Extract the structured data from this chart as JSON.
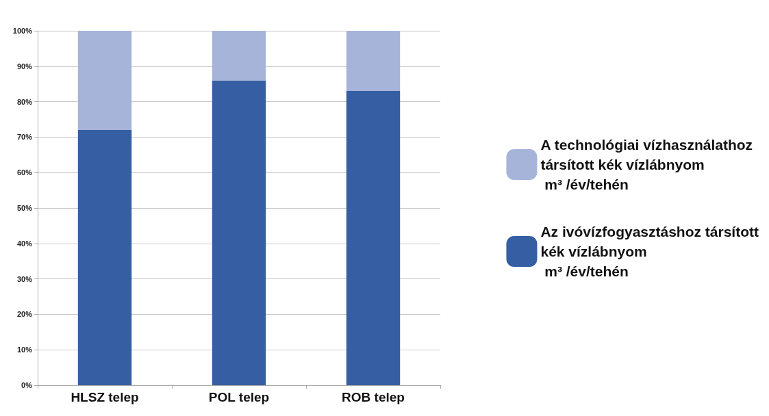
{
  "chart_data": {
    "type": "bar",
    "stacked": true,
    "categories": [
      "HLSZ telep",
      "POL telep",
      "ROB telep"
    ],
    "series": [
      {
        "name": "Az ivóvízfogyasztáshoz társított\nkék vízlábnyom\n m³ /év/tehén",
        "color": "#365ea2",
        "values": [
          72,
          86,
          83
        ]
      },
      {
        "name": "A technológiai vízhasználathoz\ntársított kék vízlábnyom\n m³ /év/tehén",
        "color": "#a7b4da",
        "values": [
          28,
          14,
          17
        ]
      }
    ],
    "ylim": [
      0,
      100
    ],
    "yticks": [
      {
        "value": 0,
        "label": "0%"
      },
      {
        "value": 10,
        "label": "10%"
      },
      {
        "value": 20,
        "label": "20%"
      },
      {
        "value": 30,
        "label": "30%"
      },
      {
        "value": 40,
        "label": "40%"
      },
      {
        "value": 50,
        "label": "50%"
      },
      {
        "value": 60,
        "label": "60%"
      },
      {
        "value": 70,
        "label": "70%"
      },
      {
        "value": 80,
        "label": "80%"
      },
      {
        "value": 90,
        "label": "90%"
      },
      {
        "value": 100,
        "label": "100%"
      }
    ],
    "grid": "y",
    "legend": "right"
  }
}
